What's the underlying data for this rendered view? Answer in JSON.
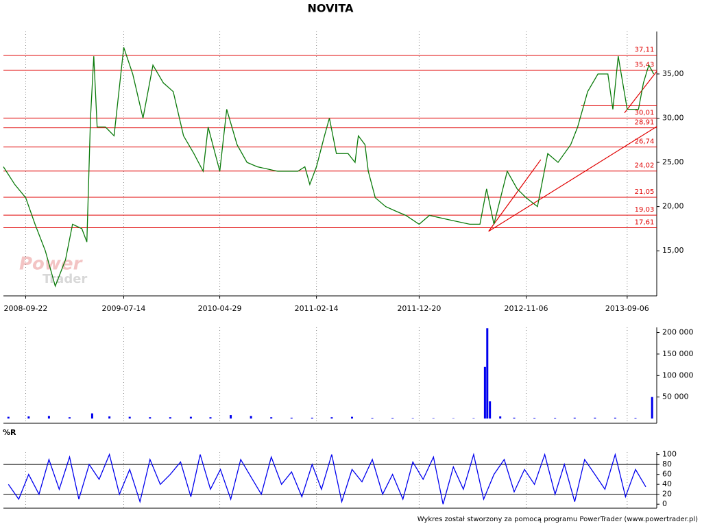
{
  "chart_data": [
    {
      "type": "line",
      "title": "NOVITA",
      "color": "#0a7a0a",
      "level_color": "#e00000",
      "xlim": [
        "2008-07-17",
        "2013-12-04"
      ],
      "xticks": [
        "2008-09-22",
        "2009-07-14",
        "2010-04-29",
        "2011-02-14",
        "2011-12-20",
        "2012-11-06",
        "2013-09-06"
      ],
      "ylim": [
        9.9,
        39.8
      ],
      "yticks": [
        {
          "value": 15,
          "label": "15,00"
        },
        {
          "value": 20,
          "label": "20,00"
        },
        {
          "value": 25,
          "label": "25,00"
        },
        {
          "value": 30,
          "label": "30,00"
        },
        {
          "value": 35,
          "label": "35,00"
        }
      ],
      "x": [
        "2008-07-17",
        "2008-08-20",
        "2008-09-22",
        "2008-10-20",
        "2008-11-20",
        "2008-12-20",
        "2009-01-20",
        "2009-02-10",
        "2009-03-10",
        "2009-03-25",
        "2009-04-05",
        "2009-04-15",
        "2009-04-25",
        "2009-05-20",
        "2009-06-15",
        "2009-07-14",
        "2009-08-10",
        "2009-09-10",
        "2009-10-10",
        "2009-11-10",
        "2009-12-10",
        "2010-01-10",
        "2010-02-10",
        "2010-03-10",
        "2010-03-25",
        "2010-04-29",
        "2010-05-20",
        "2010-06-20",
        "2010-07-20",
        "2010-08-20",
        "2010-10-20",
        "2010-12-20",
        "2011-01-10",
        "2011-01-25",
        "2011-02-14",
        "2011-03-10",
        "2011-03-25",
        "2011-04-15",
        "2011-05-20",
        "2011-06-10",
        "2011-06-20",
        "2011-07-10",
        "2011-07-20",
        "2011-08-10",
        "2011-09-10",
        "2011-10-10",
        "2011-11-10",
        "2011-12-20",
        "2012-01-20",
        "2012-03-20",
        "2012-05-20",
        "2012-06-20",
        "2012-07-10",
        "2012-08-01",
        "2012-09-10",
        "2012-10-10",
        "2012-11-06",
        "2012-12-10",
        "2013-01-10",
        "2013-02-10",
        "2013-03-20",
        "2013-04-10",
        "2013-05-10",
        "2013-06-10",
        "2013-07-10",
        "2013-07-25",
        "2013-08-10",
        "2013-09-06",
        "2013-10-10",
        "2013-10-25",
        "2013-11-10",
        "2013-11-25"
      ],
      "values": [
        24.5,
        22.5,
        21,
        18,
        15,
        11,
        14,
        18,
        17.5,
        16,
        30,
        37,
        29,
        29,
        28,
        38,
        35,
        30,
        36,
        34,
        33,
        28,
        26,
        24,
        29,
        24,
        31,
        27,
        25,
        24.5,
        24,
        24,
        24.5,
        22.5,
        24.5,
        28,
        30,
        26,
        26,
        25,
        28,
        27,
        24,
        21,
        20,
        19.5,
        19,
        18,
        19,
        18.5,
        18,
        18,
        22,
        18,
        24,
        22,
        21,
        20,
        26,
        25,
        27,
        29,
        33,
        35,
        35,
        31,
        37,
        31,
        31,
        34,
        36,
        35
      ],
      "levels": [
        {
          "value": 37.11,
          "label": "37,11"
        },
        {
          "value": 35.43,
          "label": "35,43"
        },
        {
          "value": 30.01,
          "label": "30,01"
        },
        {
          "value": 28.91,
          "label": "28,91"
        },
        {
          "value": 26.74,
          "label": "26,74"
        },
        {
          "value": 24.02,
          "label": "24,02"
        },
        {
          "value": 21.05,
          "label": "21,05"
        },
        {
          "value": 19.03,
          "label": "19,03"
        },
        {
          "value": 17.61,
          "label": "17,61"
        }
      ],
      "trend_lines": [
        [
          [
            "2012-07-16",
            17.2
          ],
          [
            "2013-12-04",
            29.05
          ]
        ],
        [
          [
            "2012-07-16",
            17.2
          ],
          [
            "2012-12-20",
            25.3
          ]
        ],
        [
          [
            "2013-08-29",
            30.6
          ],
          [
            "2013-12-04",
            35.3
          ]
        ],
        [
          [
            "2013-04-20",
            31.4
          ],
          [
            "2013-12-04",
            31.4
          ]
        ]
      ]
    },
    {
      "type": "bar",
      "color": "#0000ee",
      "xlim": [
        "2008-07-17",
        "2013-12-04"
      ],
      "ylim": [
        -11000,
        212000
      ],
      "yticks": [
        {
          "value": 50000,
          "label": "50 000"
        },
        {
          "value": 100000,
          "label": "100 000"
        },
        {
          "value": 150000,
          "label": "150 000"
        },
        {
          "value": 200000,
          "label": "200 000"
        }
      ],
      "x": [
        "2008-08-01",
        "2008-10-01",
        "2008-12-01",
        "2009-02-01",
        "2009-04-10",
        "2009-06-01",
        "2009-08-01",
        "2009-10-01",
        "2009-12-01",
        "2010-02-01",
        "2010-04-01",
        "2010-06-01",
        "2010-08-01",
        "2010-10-01",
        "2010-12-01",
        "2011-02-01",
        "2011-04-01",
        "2011-06-01",
        "2011-08-01",
        "2011-10-01",
        "2011-12-01",
        "2012-02-01",
        "2012-04-01",
        "2012-06-01",
        "2012-07-05",
        "2012-07-12",
        "2012-07-20",
        "2012-08-20",
        "2012-10-01",
        "2012-12-01",
        "2013-02-01",
        "2013-04-01",
        "2013-06-01",
        "2013-08-01",
        "2013-10-01",
        "2013-11-20"
      ],
      "values": [
        4000,
        5000,
        6000,
        3000,
        12000,
        5000,
        4000,
        3000,
        3000,
        4000,
        3000,
        8000,
        6000,
        3000,
        2000,
        2000,
        3000,
        4000,
        1500,
        1500,
        1000,
        1000,
        800,
        1000,
        120000,
        210000,
        40000,
        5000,
        2000,
        1500,
        1500,
        2000,
        2000,
        2000,
        1500,
        50000
      ]
    },
    {
      "type": "line",
      "title": "%R",
      "color": "#0000ee",
      "xlim": [
        "2008-07-17",
        "2013-12-04"
      ],
      "ylim": [
        -8,
        105
      ],
      "yticks": [
        0,
        20,
        40,
        60,
        80,
        100
      ],
      "hlines": [
        20,
        80
      ],
      "x": [
        "2008-08-01",
        "2008-09-01",
        "2008-10-01",
        "2008-11-01",
        "2008-12-01",
        "2009-01-01",
        "2009-02-01",
        "2009-03-01",
        "2009-04-01",
        "2009-05-01",
        "2009-06-01",
        "2009-07-01",
        "2009-08-01",
        "2009-09-01",
        "2009-10-01",
        "2009-11-01",
        "2009-12-01",
        "2010-01-01",
        "2010-02-01",
        "2010-03-01",
        "2010-04-01",
        "2010-05-01",
        "2010-06-01",
        "2010-07-01",
        "2010-08-01",
        "2010-09-01",
        "2010-10-01",
        "2010-11-01",
        "2010-12-01",
        "2011-01-01",
        "2011-02-01",
        "2011-03-01",
        "2011-04-01",
        "2011-05-01",
        "2011-06-01",
        "2011-07-01",
        "2011-08-01",
        "2011-09-01",
        "2011-10-01",
        "2011-11-01",
        "2011-12-01",
        "2012-01-01",
        "2012-02-01",
        "2012-03-01",
        "2012-04-01",
        "2012-05-01",
        "2012-06-01",
        "2012-07-01",
        "2012-08-01",
        "2012-09-01",
        "2012-10-01",
        "2012-11-01",
        "2012-12-01",
        "2013-01-01",
        "2013-02-01",
        "2013-03-01",
        "2013-04-01",
        "2013-05-01",
        "2013-06-01",
        "2013-07-01",
        "2013-08-01",
        "2013-09-01",
        "2013-10-01",
        "2013-11-01"
      ],
      "values": [
        40,
        10,
        60,
        20,
        90,
        30,
        95,
        10,
        80,
        50,
        100,
        20,
        70,
        5,
        90,
        40,
        60,
        85,
        15,
        100,
        30,
        70,
        10,
        90,
        55,
        20,
        95,
        40,
        65,
        15,
        80,
        30,
        100,
        5,
        70,
        45,
        90,
        20,
        60,
        10,
        85,
        50,
        95,
        0,
        75,
        30,
        100,
        10,
        60,
        90,
        25,
        70,
        40,
        100,
        20,
        80,
        5,
        90,
        60,
        30,
        100,
        15,
        70,
        35
      ]
    }
  ],
  "watermark": [
    "Power",
    "Trader"
  ],
  "footer": "Wykres został stworzony za pomocą programu PowerTrader (www.powertrader.pl)"
}
